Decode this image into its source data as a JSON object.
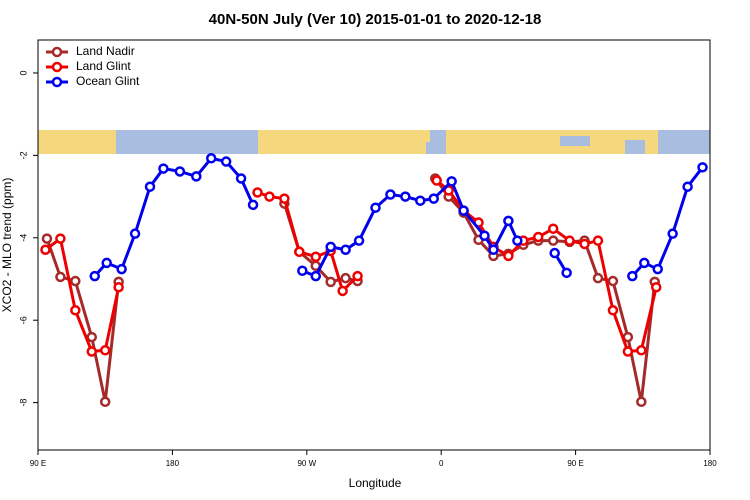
{
  "chart_data": {
    "type": "line",
    "title": "40N-50N July (Ver 10)   2015-01-01 to 2020-12-18",
    "x_label": "Longitude",
    "y_label": "XCO2 - MLO trend (ppm)",
    "xlim": [
      90,
      540
    ],
    "ylim": [
      -9.15,
      0.8
    ],
    "xticks": [
      {
        "value": 90,
        "label": "90 E"
      },
      180,
      {
        "value": 270,
        "label": "90 W"
      },
      {
        "value": 360,
        "label": "0"
      },
      {
        "value": 450,
        "label": "90 E"
      },
      {
        "value": 540,
        "label": "180"
      }
    ],
    "yticks": [
      0,
      -2,
      -4,
      -6,
      -8
    ],
    "legend": "top-left",
    "series": [
      {
        "name": "Land Nadir",
        "color": "#a52a2a",
        "x": [
          96,
          105,
          115,
          126,
          135,
          144,
          null,
          255,
          265,
          276,
          286,
          296,
          304,
          null,
          356,
          365,
          375,
          385,
          395,
          405,
          415,
          425,
          435,
          446,
          456,
          465,
          475,
          485,
          494,
          503
        ],
        "values": [
          -4.02,
          -4.95,
          -5.05,
          -6.41,
          -7.98,
          -5.07,
          null,
          -3.17,
          -4.34,
          -4.68,
          -5.07,
          -4.98,
          -5.05,
          null,
          -2.56,
          -3.0,
          -3.39,
          -4.05,
          -4.44,
          -4.39,
          -4.17,
          -4.07,
          -4.07,
          -4.1,
          -4.07,
          -4.98,
          -5.05,
          -6.41,
          -7.98,
          -5.07
        ]
      },
      {
        "name": "Land Glint",
        "color": "#ee0000",
        "x": [
          95,
          105,
          115,
          126,
          135,
          144,
          null,
          237,
          245,
          255,
          265,
          276,
          286,
          294,
          304,
          null,
          357,
          365,
          375,
          385,
          395,
          405,
          415,
          425,
          435,
          446,
          456,
          465,
          475,
          485,
          494,
          504
        ],
        "values": [
          -4.29,
          -4.02,
          -5.76,
          -6.76,
          -6.73,
          -5.2,
          null,
          -2.9,
          -3.0,
          -3.05,
          -4.34,
          -4.46,
          -4.32,
          -5.29,
          -4.93,
          null,
          -2.61,
          -2.85,
          -3.34,
          -3.63,
          -4.22,
          -4.44,
          -4.07,
          -3.98,
          -3.78,
          -4.07,
          -4.15,
          -4.07,
          -5.76,
          -6.76,
          -6.73,
          -5.2
        ]
      },
      {
        "name": "Ocean Glint",
        "color": "#0000ee",
        "x": [
          128,
          136,
          146,
          155,
          165,
          174,
          185,
          196,
          206,
          216,
          226,
          234,
          null,
          267,
          276,
          286,
          296,
          305,
          316,
          326,
          336,
          346,
          355,
          367,
          375,
          389,
          395,
          405,
          411,
          null,
          436,
          444,
          null,
          488,
          496,
          505,
          515,
          525,
          535
        ],
        "values": [
          -4.93,
          -4.61,
          -4.76,
          -3.9,
          -2.76,
          -2.32,
          -2.39,
          -2.51,
          -2.07,
          -2.15,
          -2.56,
          -3.2,
          null,
          -4.8,
          -4.93,
          -4.22,
          -4.29,
          -4.07,
          -3.27,
          -2.95,
          -3.0,
          -3.1,
          -3.05,
          -2.63,
          -3.34,
          -3.95,
          -4.29,
          -3.59,
          -4.07,
          null,
          -4.37,
          -4.85,
          null,
          -4.93,
          -4.61,
          -4.76,
          -3.9,
          -2.76,
          -2.29
        ]
      }
    ]
  }
}
